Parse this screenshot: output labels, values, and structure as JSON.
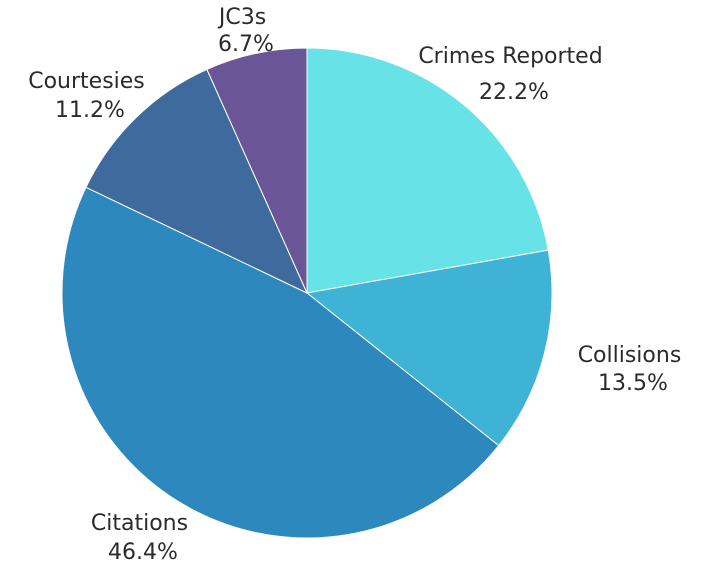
{
  "chart_data": {
    "type": "pie",
    "slices": [
      {
        "label": "Crimes Reported",
        "value": 22.2,
        "percent_label": "22.2%",
        "color": "#67e2e7"
      },
      {
        "label": "Collisions",
        "value": 13.5,
        "percent_label": "13.5%",
        "color": "#3fb3d5"
      },
      {
        "label": "Citations",
        "value": 46.4,
        "percent_label": "46.4%",
        "color": "#2c88bd"
      },
      {
        "label": "Courtesies",
        "value": 11.2,
        "percent_label": "11.2%",
        "color": "#3e6a9d"
      },
      {
        "label": "JC3s",
        "value": 6.7,
        "percent_label": "6.7%",
        "color": "#6a5696"
      }
    ],
    "start": "12 o'clock",
    "direction": "clockwise",
    "legend": "none"
  }
}
